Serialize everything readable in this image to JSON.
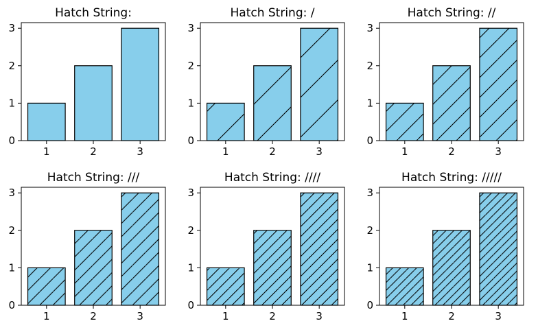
{
  "colors": {
    "bar_fill": "#87CEEB",
    "bar_edge": "#000000",
    "hatch": "#000000",
    "background": "#ffffff"
  },
  "chart_data": [
    {
      "type": "bar",
      "title": "Hatch String:",
      "hatch": "",
      "categories": [
        "1",
        "2",
        "3"
      ],
      "values": [
        1,
        2,
        3
      ],
      "ylim": [
        0,
        3.15
      ],
      "yticks": [
        "0",
        "1",
        "2",
        "3"
      ],
      "grid": false
    },
    {
      "type": "bar",
      "title": "Hatch String: /",
      "hatch": "/",
      "categories": [
        "1",
        "2",
        "3"
      ],
      "values": [
        1,
        2,
        3
      ],
      "ylim": [
        0,
        3.15
      ],
      "yticks": [
        "0",
        "1",
        "2",
        "3"
      ],
      "grid": false
    },
    {
      "type": "bar",
      "title": "Hatch String: //",
      "hatch": "//",
      "categories": [
        "1",
        "2",
        "3"
      ],
      "values": [
        1,
        2,
        3
      ],
      "ylim": [
        0,
        3.15
      ],
      "yticks": [
        "0",
        "1",
        "2",
        "3"
      ],
      "grid": false
    },
    {
      "type": "bar",
      "title": "Hatch String: ///",
      "hatch": "///",
      "categories": [
        "1",
        "2",
        "3"
      ],
      "values": [
        1,
        2,
        3
      ],
      "ylim": [
        0,
        3.15
      ],
      "yticks": [
        "0",
        "1",
        "2",
        "3"
      ],
      "grid": false
    },
    {
      "type": "bar",
      "title": "Hatch String: ////",
      "hatch": "////",
      "categories": [
        "1",
        "2",
        "3"
      ],
      "values": [
        1,
        2,
        3
      ],
      "ylim": [
        0,
        3.15
      ],
      "yticks": [
        "0",
        "1",
        "2",
        "3"
      ],
      "grid": false
    },
    {
      "type": "bar",
      "title": "Hatch String: /////",
      "hatch": "/////",
      "categories": [
        "1",
        "2",
        "3"
      ],
      "values": [
        1,
        2,
        3
      ],
      "ylim": [
        0,
        3.15
      ],
      "yticks": [
        "0",
        "1",
        "2",
        "3"
      ],
      "grid": false
    }
  ]
}
